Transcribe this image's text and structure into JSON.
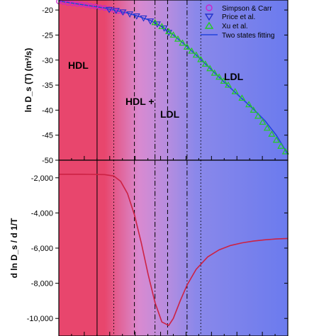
{
  "chart_data": [
    {
      "type": "scatter",
      "panel": "top",
      "ylabel": "ln D_s(T) (m²/s)",
      "ylim": [
        -50,
        -18
      ],
      "yticks": [
        -20,
        -25,
        -30,
        -35,
        -40,
        -45,
        -50
      ],
      "xrange": [
        0,
        1
      ],
      "grid": false,
      "legend_position": "top-right",
      "regions": [
        {
          "label": "HDL",
          "xstart": 0.0,
          "xend": 0.2,
          "color": "#e8466d"
        },
        {
          "label": "HDL +",
          "xstart": 0.2,
          "xend": 0.58,
          "color": "#c06cc8"
        },
        {
          "label": "LDL",
          "xstart": 0.58,
          "xend": 1.0,
          "color": "#6b7bee"
        }
      ],
      "vertical_lines": [
        {
          "x": 0.167,
          "style": "solid"
        },
        {
          "x": 0.24,
          "style": "dotted"
        },
        {
          "x": 0.33,
          "style": "dashed"
        },
        {
          "x": 0.42,
          "style": "dashdot"
        },
        {
          "x": 0.475,
          "style": "dashed"
        },
        {
          "x": 0.56,
          "style": "dashdot"
        },
        {
          "x": 0.62,
          "style": "dotted"
        }
      ],
      "series": [
        {
          "name": "Simpson & Carr",
          "marker": "circle",
          "color": "#cc22cc",
          "x": [
            0.0,
            0.02,
            0.04,
            0.06,
            0.08,
            0.1,
            0.12,
            0.14,
            0.16,
            0.18,
            0.2,
            0.22,
            0.24,
            0.26,
            0.28
          ],
          "y": [
            -18.3,
            -18.4,
            -18.6,
            -18.7,
            -18.8,
            -18.9,
            -19.0,
            -19.2,
            -19.3,
            -19.5,
            -19.6,
            -19.8,
            -20.0,
            -20.2,
            -20.4
          ]
        },
        {
          "name": "Price et al.",
          "marker": "triangle-down",
          "color": "#2233cc",
          "x": [
            0.22,
            0.25,
            0.28,
            0.31,
            0.34,
            0.37,
            0.4,
            0.43,
            0.46,
            0.48
          ],
          "y": [
            -19.9,
            -20.1,
            -20.4,
            -20.8,
            -21.2,
            -21.6,
            -22.2,
            -22.8,
            -23.6,
            -24.5
          ]
        },
        {
          "name": "Xu et al.",
          "marker": "triangle-up",
          "color": "#22cc22",
          "x": [
            0.42,
            0.45,
            0.48,
            0.5,
            0.52,
            0.54,
            0.56,
            0.58,
            0.6,
            0.62,
            0.64,
            0.66,
            0.68,
            0.7,
            0.72,
            0.74,
            0.77,
            0.8,
            0.83,
            0.85,
            0.87,
            0.89,
            0.91,
            0.93,
            0.95,
            0.97,
            0.99
          ],
          "y": [
            -22.5,
            -23.3,
            -24.3,
            -25.0,
            -25.8,
            -26.6,
            -27.4,
            -28.2,
            -29.0,
            -29.9,
            -30.8,
            -31.7,
            -32.6,
            -33.4,
            -34.2,
            -35.0,
            -36.3,
            -37.6,
            -38.9,
            -40.0,
            -41.2,
            -42.4,
            -43.6,
            -44.8,
            -46.0,
            -47.2,
            -48.3
          ]
        },
        {
          "name": "Two states fitting",
          "marker": "line",
          "color": "#2244dd",
          "x": [
            0.0,
            0.1,
            0.2,
            0.3,
            0.35,
            0.4,
            0.45,
            0.5,
            0.55,
            0.6,
            0.65,
            0.7,
            0.75,
            0.8,
            0.85,
            0.9,
            0.95,
            1.0
          ],
          "y": [
            -18.2,
            -18.9,
            -19.6,
            -20.6,
            -21.3,
            -22.1,
            -23.3,
            -25.0,
            -26.9,
            -29.0,
            -31.2,
            -33.4,
            -35.6,
            -37.7,
            -39.8,
            -42.1,
            -45.0,
            -48.8
          ]
        }
      ],
      "annotations": [
        "HDL",
        "HDL +",
        "LDL",
        "LDL"
      ]
    },
    {
      "type": "line",
      "panel": "bottom",
      "ylabel": "d ln D_s / d 1/T",
      "ylim": [
        -11000,
        -1000
      ],
      "yticks": [
        -2000,
        -4000,
        -6000,
        -8000,
        -10000
      ],
      "yticklabels": [
        "-2,000",
        "-4,000",
        "-6,000",
        "-8,000",
        "-10,000"
      ],
      "xrange": [
        0,
        1
      ],
      "grid": false,
      "series": [
        {
          "color": "#cc2244",
          "x": [
            0.0,
            0.1,
            0.2,
            0.24,
            0.27,
            0.3,
            0.33,
            0.36,
            0.39,
            0.42,
            0.45,
            0.48,
            0.5,
            0.53,
            0.56,
            0.6,
            0.65,
            0.7,
            0.75,
            0.8,
            0.85,
            0.9,
            0.95,
            1.0
          ],
          "y": [
            -1800,
            -1800,
            -1820,
            -1900,
            -2200,
            -2900,
            -4100,
            -5700,
            -7500,
            -9100,
            -10200,
            -10400,
            -10000,
            -9000,
            -8100,
            -7200,
            -6500,
            -6100,
            -5850,
            -5700,
            -5600,
            -5530,
            -5480,
            -5450
          ]
        }
      ]
    }
  ],
  "legend": {
    "items": [
      {
        "label": "Simpson & Carr",
        "marker": "circle",
        "color": "#cc22cc"
      },
      {
        "label": "Price et al.",
        "marker": "triangle-down",
        "color": "#2233cc"
      },
      {
        "label": "Xu et al.",
        "marker": "triangle-up",
        "color": "#22cc22"
      },
      {
        "label": "Two states fitting",
        "marker": "line",
        "color": "#2244dd"
      }
    ]
  },
  "labels": {
    "top_ylabel": "ln D_s (T) (m²/s)",
    "bottom_ylabel": "d ln D_s / d 1/T",
    "top_ytick_labels": [
      "-20",
      "-25",
      "-30",
      "-35",
      "-40",
      "-45",
      "-50"
    ],
    "bottom_ytick_labels": [
      "-2,000",
      "-4,000",
      "-6,000",
      "-8,000",
      "-10,000"
    ],
    "region_hdl": "HDL",
    "region_mix_1": "HDL +",
    "region_mix_2": "LDL",
    "region_ldl": "LDL"
  },
  "colors": {
    "hdl": "#e8466d",
    "mix": "#c06cc8",
    "ldl": "#6b7bee"
  }
}
